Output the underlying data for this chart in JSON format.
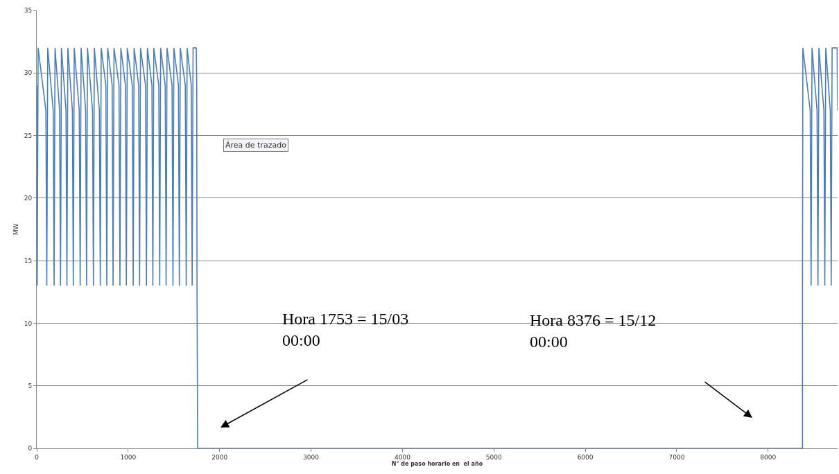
{
  "chart_data": {
    "type": "line",
    "xlabel": "N° de paso horario en  el año",
    "ylabel": "MW",
    "x": [
      0,
      5,
      15,
      100,
      110,
      120,
      180,
      190,
      200,
      250,
      260,
      270,
      320,
      330,
      340,
      390,
      400,
      410,
      465,
      475,
      485,
      535,
      545,
      555,
      610,
      620,
      630,
      685,
      695,
      705,
      756,
      766,
      776,
      825,
      835,
      845,
      900,
      910,
      920,
      970,
      980,
      990,
      1045,
      1055,
      1065,
      1115,
      1125,
      1135,
      1190,
      1200,
      1210,
      1260,
      1270,
      1280,
      1335,
      1345,
      1355,
      1405,
      1415,
      1425,
      1480,
      1490,
      1500,
      1550,
      1560,
      1570,
      1625,
      1635,
      1645,
      1690,
      1700,
      1710,
      1745,
      1750,
      1753,
      1760,
      8376,
      8376,
      8380,
      8460,
      8470,
      8480,
      8535,
      8545,
      8555,
      8610,
      8620,
      8630,
      8680,
      8690,
      8700,
      8755,
      8760
    ],
    "series": [
      {
        "color": "#4a7ebb",
        "values": [
          29,
          13,
          32,
          27,
          13,
          32,
          27,
          13,
          32,
          27,
          13,
          32,
          27,
          13,
          32,
          27,
          13,
          32,
          27,
          13,
          32,
          27,
          13,
          32,
          27,
          13,
          32,
          27,
          13,
          32,
          29,
          13,
          32,
          29,
          13,
          32,
          29,
          13,
          32,
          29,
          13,
          32,
          29,
          13,
          32,
          29,
          13,
          32,
          29,
          13,
          32,
          29,
          13,
          32,
          29,
          13,
          32,
          29,
          13,
          32,
          29,
          13,
          32,
          29,
          13,
          32,
          29,
          13,
          32,
          29,
          13,
          32,
          32,
          29,
          13,
          0,
          0,
          13,
          32,
          27,
          13,
          32,
          27,
          13,
          32,
          27,
          13,
          32,
          27,
          13,
          32,
          32,
          27
        ]
      }
    ],
    "xlim": [
      0,
      8760
    ],
    "ylim": [
      0,
      35
    ],
    "xticks": [
      0,
      1000,
      2000,
      3000,
      4000,
      5000,
      6000,
      7000,
      8000
    ],
    "yticks": [
      0,
      5,
      10,
      15,
      20,
      25,
      30,
      35
    ],
    "grid": "y",
    "marker": "none",
    "line_style": "solid",
    "annotations": [
      "Hora 1753 = 15/03\n00:00",
      "Hora 8376 = 15/12\n00:00",
      "Área de trazado"
    ]
  }
}
